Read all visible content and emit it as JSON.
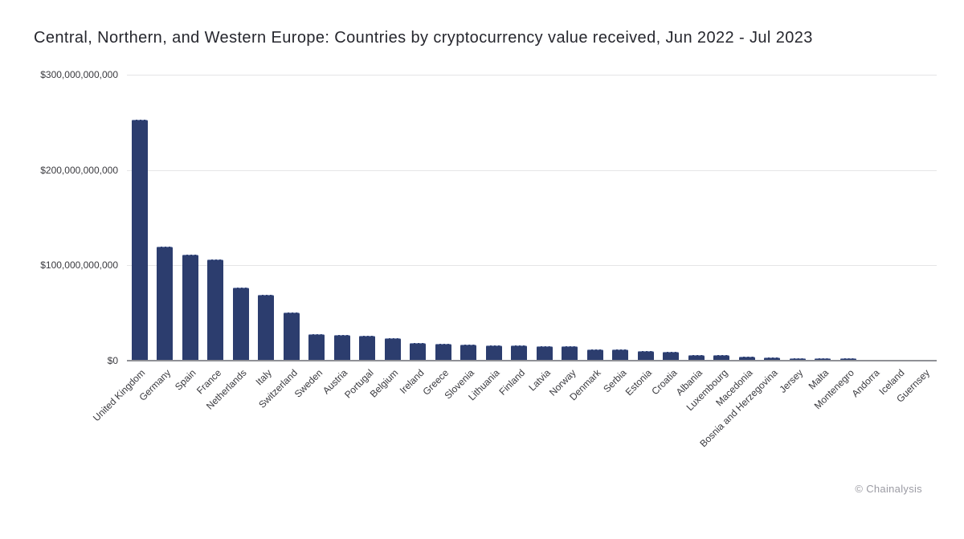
{
  "title": "Central, Northern, and Western Europe: Countries by cryptocurrency value received, Jun 2022 - Jul 2023",
  "attribution": "© Chainalysis",
  "colors": {
    "bar": "#2c3d6e",
    "grid": "#e5e5e6",
    "axis": "#8f9095",
    "title": "#26272e",
    "tick": "#3a3a3f",
    "attribution": "#9b9ba3"
  },
  "chart_data": {
    "type": "bar",
    "title": "Central, Northern, and Western Europe: Countries by cryptocurrency value received, Jun 2022 - Jul 2023",
    "xlabel": "",
    "ylabel": "",
    "unit": "USD",
    "ylim_billions": [
      0,
      300
    ],
    "grid": "horizontal",
    "legend": "none",
    "y_ticks": [
      {
        "label": "$300,000,000,000",
        "value_billions": 300
      },
      {
        "label": "$200,000,000,000",
        "value_billions": 200
      },
      {
        "label": "$100,000,000,000",
        "value_billions": 100
      },
      {
        "label": "$0",
        "value_billions": 0
      }
    ],
    "categories": [
      "United Kingdom",
      "Germany",
      "Spain",
      "France",
      "Netherlands",
      "Italy",
      "Switzerland",
      "Sweden",
      "Austria",
      "Portugal",
      "Belgium",
      "Ireland",
      "Greece",
      "Slovenia",
      "Lithuania",
      "Finland",
      "Latvia",
      "Norway",
      "Denmark",
      "Serbia",
      "Estonia",
      "Croatia",
      "Albania",
      "Luxembourg",
      "Macedonia",
      "Bosnia and Herzegovina",
      "Jersey",
      "Malta",
      "Montenegro",
      "Andorra",
      "Iceland",
      "Guernsey"
    ],
    "values_billions_usd": [
      252,
      119,
      110,
      105,
      76,
      68,
      50,
      27,
      26,
      25.5,
      22.5,
      18,
      16.5,
      16,
      15.5,
      15,
      14.5,
      14,
      11,
      11,
      9,
      8.5,
      5,
      5,
      3.5,
      2.2,
      2.1,
      2,
      1.9,
      0.4,
      0.3,
      0.2
    ]
  }
}
